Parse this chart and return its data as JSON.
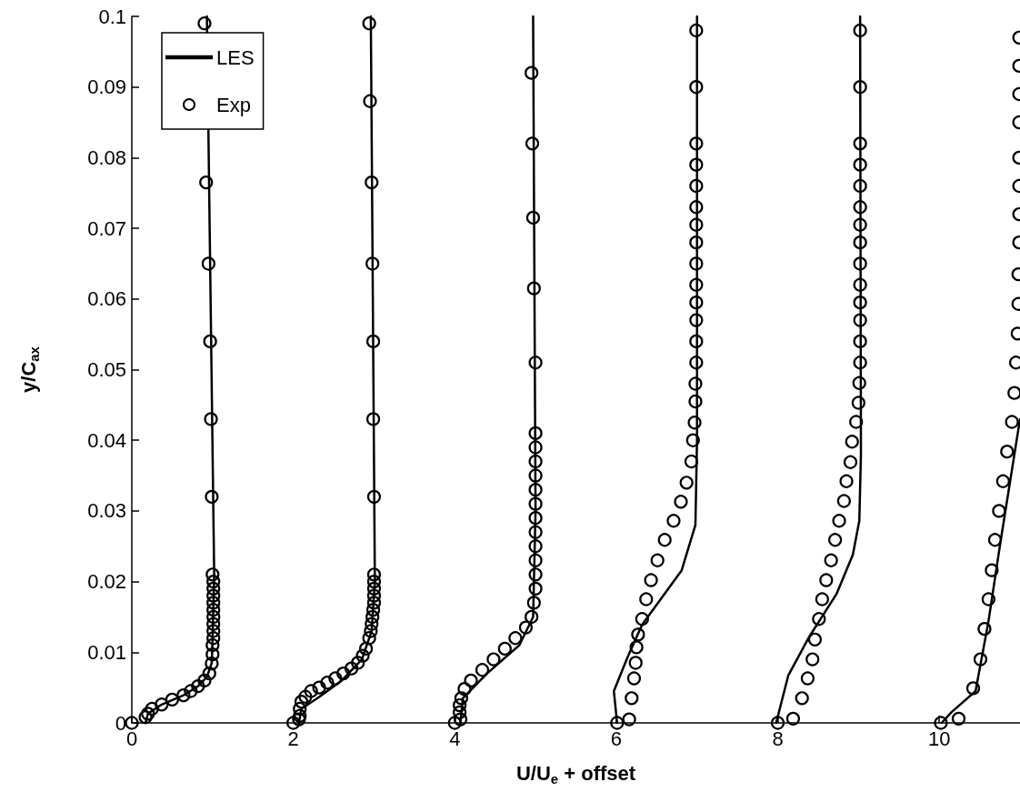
{
  "chart_data": {
    "type": "line",
    "xlabel": "U/U$_{e}$ + offset",
    "ylabel": "y/C$_{ax}$",
    "xlim": [
      0,
      11
    ],
    "xticks": [
      0,
      2,
      4,
      6,
      8,
      10
    ],
    "ylim": [
      0,
      0.1
    ],
    "yticks": [
      0,
      0.01,
      0.02,
      0.03,
      0.04,
      0.05,
      0.06,
      0.07,
      0.08,
      0.09,
      0.1
    ],
    "grid": false,
    "legend": "top left",
    "series": [
      {
        "name": "LES",
        "type": "line",
        "color": "#000000",
        "marker": "none",
        "line_style": "solid",
        "x": [
          0.17,
          0.2,
          0.37,
          0.64,
          0.82,
          0.93,
          0.99,
          1.0,
          1.02,
          0.93,
          null,
          2.07,
          2.1,
          2.3,
          2.6,
          2.85,
          2.97,
          3.01,
          2.96,
          null,
          4.07,
          4.1,
          4.4,
          4.8,
          4.97,
          5.0,
          4.97,
          null,
          6.01,
          5.97,
          6.14,
          6.32,
          6.81,
          6.98,
          7.0,
          7.0,
          null,
          7.98,
          8.13,
          8.39,
          8.73,
          8.93,
          9.01,
          9.03,
          9.02,
          null,
          10.03,
          10.15,
          10.45,
          10.61,
          10.75,
          10.9,
          11.0
        ],
        "values": [
          0,
          0.0013,
          0.0026,
          0.0039,
          0.0052,
          0.0065,
          0.0085,
          0.012,
          0.021,
          0.1,
          null,
          0,
          0.002,
          0.0035,
          0.006,
          0.009,
          0.013,
          0.02,
          0.1,
          null,
          0,
          0.0035,
          0.007,
          0.011,
          0.015,
          0.03,
          0.1,
          null,
          0,
          0.0045,
          0.0093,
          0.0139,
          0.0216,
          0.028,
          0.04,
          0.1,
          null,
          0,
          0.0067,
          0.0122,
          0.0183,
          0.0238,
          0.0286,
          0.038,
          0.1,
          null,
          0,
          0.0015,
          0.0045,
          0.0144,
          0.025,
          0.0358,
          0.043
        ]
      },
      {
        "name": "Exp",
        "type": "scatter",
        "color": "#000000",
        "marker": "circle",
        "x": [
          0,
          0.17,
          0.2,
          0.25,
          0.37,
          0.5,
          0.64,
          0.73,
          0.82,
          0.9,
          0.96,
          0.99,
          1.0,
          1.0,
          1.01,
          1.01,
          1.01,
          1.01,
          1.01,
          1.01,
          1.01,
          1.01,
          1.01,
          1.0,
          0.99,
          0.98,
          0.97,
          0.95,
          0.92,
          0.9,
          2,
          2.07,
          2.08,
          2.08,
          2.1,
          2.15,
          2.22,
          2.32,
          2.42,
          2.52,
          2.62,
          2.72,
          2.8,
          2.86,
          2.9,
          2.94,
          2.96,
          2.97,
          2.98,
          2.99,
          3.0,
          3.0,
          3.0,
          3.0,
          3.0,
          3.0,
          2.99,
          2.99,
          2.98,
          2.97,
          2.95,
          2.94,
          4,
          4.07,
          4.06,
          4.06,
          4.08,
          4.12,
          4.2,
          4.34,
          4.48,
          4.62,
          4.75,
          4.88,
          4.95,
          4.98,
          5.0,
          5.0,
          5.0,
          5.0,
          5.0,
          5.0,
          5.0,
          5.0,
          5.0,
          5.0,
          5.0,
          5.0,
          5.0,
          4.98,
          4.97,
          4.96,
          4.95,
          6.01,
          6.16,
          6.19,
          6.22,
          6.24,
          6.25,
          6.27,
          6.32,
          6.37,
          6.43,
          6.51,
          6.6,
          6.71,
          6.8,
          6.87,
          6.93,
          6.95,
          6.97,
          6.98,
          6.98,
          6.99,
          6.99,
          6.99,
          6.99,
          6.99,
          6.99,
          6.99,
          6.99,
          6.99,
          6.99,
          6.99,
          6.99,
          6.99,
          6.99,
          8.0,
          8.19,
          8.3,
          8.37,
          8.43,
          8.46,
          8.51,
          8.55,
          8.6,
          8.66,
          8.71,
          8.76,
          8.82,
          8.85,
          8.9,
          8.92,
          8.97,
          9.0,
          9.01,
          9.02,
          9.02,
          9.02,
          9.02,
          9.02,
          9.02,
          9.02,
          9.02,
          9.02,
          9.02,
          9.02,
          9.02,
          9.02,
          9.02,
          10.02,
          10.24,
          10.42,
          10.51,
          10.56,
          10.61,
          10.65,
          10.69,
          10.74,
          10.79,
          10.84,
          10.9,
          10.93,
          10.95,
          10.97,
          10.98,
          10.98,
          10.99,
          10.99,
          10.99,
          10.99,
          10.99,
          10.99,
          10.99,
          10.99
        ],
        "values": [
          0,
          0.0008,
          0.0013,
          0.002,
          0.0026,
          0.0033,
          0.0039,
          0.0045,
          0.0052,
          0.006,
          0.007,
          0.0084,
          0.0097,
          0.011,
          0.012,
          0.013,
          0.014,
          0.015,
          0.016,
          0.017,
          0.018,
          0.019,
          0.02,
          0.021,
          0.032,
          0.043,
          0.054,
          0.065,
          0.0765,
          0.099,
          0,
          0.0005,
          0.001,
          0.002,
          0.003,
          0.0037,
          0.0045,
          0.005,
          0.0057,
          0.0063,
          0.007,
          0.0077,
          0.0085,
          0.0095,
          0.0105,
          0.012,
          0.013,
          0.014,
          0.015,
          0.016,
          0.017,
          0.018,
          0.019,
          0.02,
          0.021,
          0.032,
          0.043,
          0.054,
          0.065,
          0.0765,
          0.088,
          0.099,
          0,
          0.0005,
          0.0015,
          0.0025,
          0.0035,
          0.0048,
          0.006,
          0.0075,
          0.009,
          0.0105,
          0.012,
          0.0135,
          0.015,
          0.017,
          0.019,
          0.021,
          0.023,
          0.025,
          0.027,
          0.029,
          0.031,
          0.033,
          0.035,
          0.037,
          0.039,
          0.041,
          0.051,
          0.0615,
          0.0715,
          0.082,
          0.092,
          0,
          0.0005,
          0.0035,
          0.0063,
          0.0085,
          0.0107,
          0.0125,
          0.0147,
          0.0175,
          0.0202,
          0.023,
          0.0259,
          0.0286,
          0.0313,
          0.034,
          0.037,
          0.04,
          0.0425,
          0.0455,
          0.048,
          0.051,
          0.054,
          0.057,
          0.0595,
          0.062,
          0.065,
          0.068,
          0.0705,
          0.073,
          0.076,
          0.079,
          0.082,
          0.09,
          0.098,
          0,
          0.0006,
          0.0035,
          0.0063,
          0.009,
          0.0118,
          0.0147,
          0.0175,
          0.0202,
          0.023,
          0.0259,
          0.0286,
          0.0314,
          0.0342,
          0.0369,
          0.0398,
          0.0426,
          0.0453,
          0.0481,
          0.051,
          0.054,
          0.057,
          0.0595,
          0.062,
          0.065,
          0.068,
          0.0705,
          0.073,
          0.076,
          0.079,
          0.082,
          0.09,
          0.098,
          0,
          0.0006,
          0.0049,
          0.009,
          0.0133,
          0.0175,
          0.0216,
          0.0259,
          0.03,
          0.0342,
          0.0384,
          0.0426,
          0.0467,
          0.051,
          0.0551,
          0.0593,
          0.0635,
          0.068,
          0.072,
          0.076,
          0.08,
          0.085,
          0.089,
          0.093,
          0.097
        ]
      }
    ]
  }
}
